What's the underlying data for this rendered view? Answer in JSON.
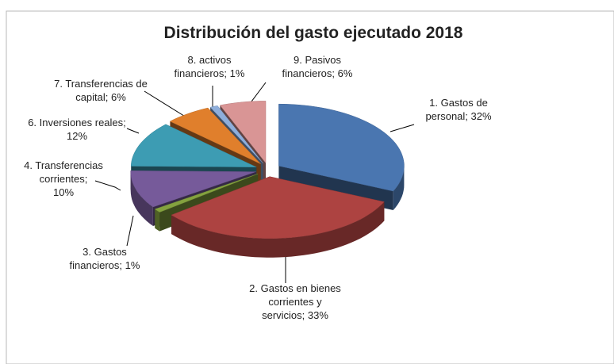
{
  "chart_data": {
    "type": "pie3d",
    "title": "Distribución del gasto ejecutado 2018",
    "categories": [
      "1. Gastos de personal",
      "2. Gastos en bienes corrientes y servicios",
      "3. Gastos financieros",
      "4. Transferencias corrientes",
      "6. Inversiones reales",
      "7. Transferencias de capital",
      "8. activos financieros",
      "9. Pasivos financieros"
    ],
    "values": [
      32,
      33,
      1,
      10,
      12,
      6,
      1,
      6
    ],
    "value_labels": [
      "1. Gastos de personal; 32%",
      "2. Gastos en bienes corrientes y servicios; 33%",
      "3. Gastos financieros; 1%",
      "4. Transferencias corrientes; 10%",
      "6. Inversiones reales; 12%",
      "7. Transferencias de capital; 6%",
      "8. activos financieros; 1%",
      "9. Pasivos financieros; 6%"
    ],
    "colors": [
      "#4a76b0",
      "#ad4341",
      "#84a23f",
      "#765a9a",
      "#3d9cb3",
      "#e07f2c",
      "#8eaedb",
      "#d99595"
    ]
  }
}
